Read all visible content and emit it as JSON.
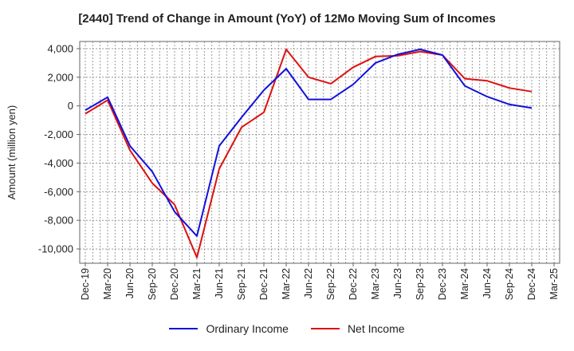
{
  "chart_data": {
    "type": "line",
    "title": "[2440]  Trend of Change in Amount (YoY) of 12Mo Moving Sum of Incomes",
    "ylabel": "Amount (million yen)",
    "xlabel": "",
    "ylim": [
      -11000,
      4500
    ],
    "yticks": [
      4000,
      2000,
      0,
      -2000,
      -4000,
      -6000,
      -8000,
      -10000
    ],
    "ytick_labels": [
      "4,000",
      "2,000",
      "0",
      "-2,000",
      "-4,000",
      "-6,000",
      "-8,000",
      "-10,000"
    ],
    "x": [
      "Dec-19",
      "Mar-20",
      "Jun-20",
      "Sep-20",
      "Dec-20",
      "Mar-21",
      "Jun-21",
      "Sep-21",
      "Dec-21",
      "Mar-22",
      "Jun-22",
      "Sep-22",
      "Dec-22",
      "Mar-23",
      "Jun-23",
      "Sep-23",
      "Dec-23",
      "Mar-24",
      "Jun-24",
      "Sep-24",
      "Dec-24",
      "Mar-25"
    ],
    "grid": true,
    "legend_position": "bottom",
    "series": [
      {
        "name": "Ordinary Income",
        "color": "#1111dd",
        "values": [
          -300,
          600,
          -2800,
          -4600,
          -7400,
          -9100,
          -2800,
          -800,
          1100,
          2600,
          450,
          450,
          1500,
          3000,
          3600,
          3950,
          3550,
          1400,
          650,
          100,
          -150,
          null
        ]
      },
      {
        "name": "Net Income",
        "color": "#dd1111",
        "values": [
          -550,
          400,
          -3100,
          -5400,
          -6900,
          -10600,
          -4400,
          -1500,
          -450,
          3950,
          2000,
          1550,
          2700,
          3450,
          3500,
          3800,
          3550,
          1900,
          1750,
          1250,
          1000,
          null
        ]
      }
    ]
  }
}
